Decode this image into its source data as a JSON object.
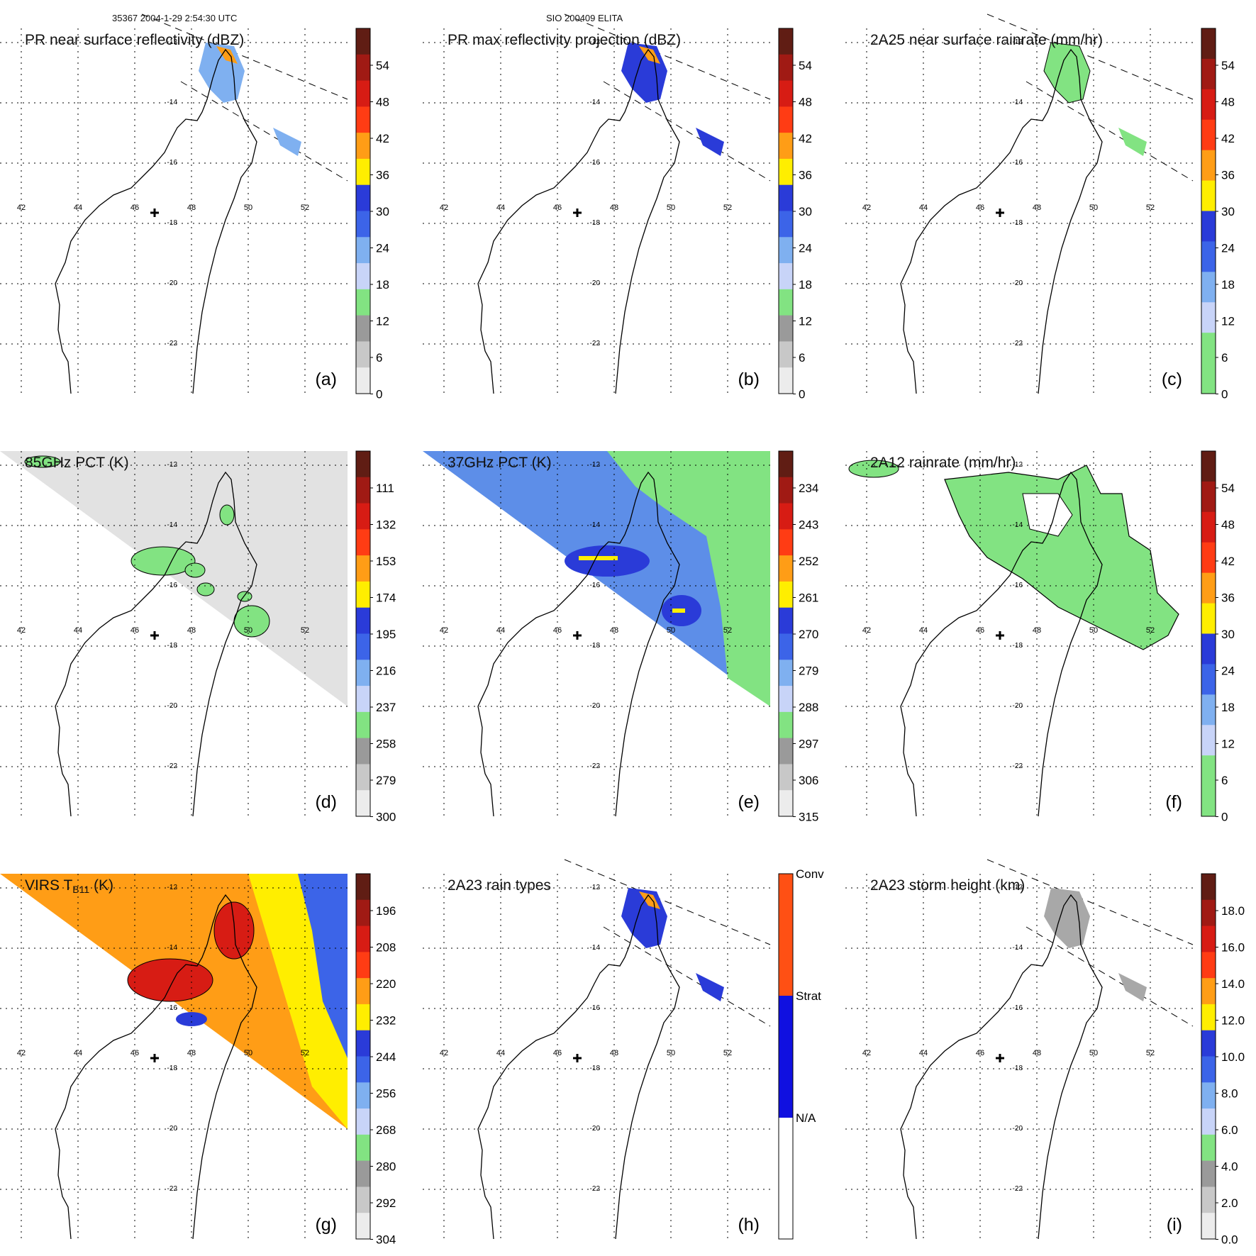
{
  "header": {
    "left": "35367 2004-1-29 2:54:30 UTC",
    "center": "SIO 200409 ELITA"
  },
  "lon_labels": [
    "42",
    "44",
    "46",
    "48",
    "50",
    "52"
  ],
  "lat_labels": [
    "-12",
    "-14",
    "-16",
    "-18",
    "-20",
    "-22"
  ],
  "colors": {
    "green": "#82e382",
    "blue": "#2a3bd8",
    "lightblue": "#7fb0f0",
    "yellow": "#ffee00",
    "orange": "#ff9d16",
    "red": "#d71c14",
    "darkred": "#601d14"
  },
  "panels": [
    {
      "id": "a",
      "title": "PR near surface reflectivity (dBZ)",
      "label": "(a)",
      "cbar": "dbz",
      "ticks": [
        "54",
        "48",
        "42",
        "36",
        "30",
        "24",
        "18",
        "12",
        "6",
        "0"
      ]
    },
    {
      "id": "b",
      "title": "PR max reflectivity projection (dBZ)",
      "label": "(b)",
      "cbar": "dbz",
      "ticks": [
        "54",
        "48",
        "42",
        "36",
        "30",
        "24",
        "18",
        "12",
        "6",
        "0"
      ]
    },
    {
      "id": "c",
      "title": "2A25 near surface rainrate (mm/hr)",
      "label": "(c)",
      "cbar": "rain",
      "ticks": [
        "54",
        "48",
        "42",
        "36",
        "30",
        "24",
        "18",
        "12",
        "6",
        "0"
      ]
    },
    {
      "id": "d",
      "title": "85GHz PCT (K)",
      "label": "(d)",
      "cbar": "pct",
      "ticks": [
        "111",
        "132",
        "153",
        "174",
        "195",
        "216",
        "237",
        "258",
        "279",
        "300"
      ]
    },
    {
      "id": "e",
      "title": "37GHz PCT (K)",
      "label": "(e)",
      "cbar": "pct",
      "ticks": [
        "234",
        "243",
        "252",
        "261",
        "270",
        "279",
        "288",
        "297",
        "306",
        "315"
      ]
    },
    {
      "id": "f",
      "title": "2A12 rainrate (mm/hr)",
      "label": "(f)",
      "cbar": "rain",
      "ticks": [
        "54",
        "48",
        "42",
        "36",
        "30",
        "24",
        "18",
        "12",
        "6",
        "0"
      ]
    },
    {
      "id": "g",
      "title": "VIRS T",
      "title_sub": "B11",
      "title_tail": " (K)",
      "label": "(g)",
      "cbar": "pct",
      "ticks": [
        "196",
        "208",
        "220",
        "232",
        "244",
        "256",
        "268",
        "280",
        "292",
        "304"
      ]
    },
    {
      "id": "h",
      "title": "2A23 rain types",
      "label": "(h)",
      "cbar": "types",
      "ticks": [
        "Conv",
        "Strat",
        "N/A"
      ]
    },
    {
      "id": "i",
      "title": "2A23 storm height (km)",
      "label": "(i)",
      "cbar": "height",
      "ticks": [
        "18.0",
        "16.0",
        "14.0",
        "12.0",
        "10.0",
        "8.0",
        "6.0",
        "4.0",
        "2.0",
        "0.0"
      ]
    }
  ]
}
